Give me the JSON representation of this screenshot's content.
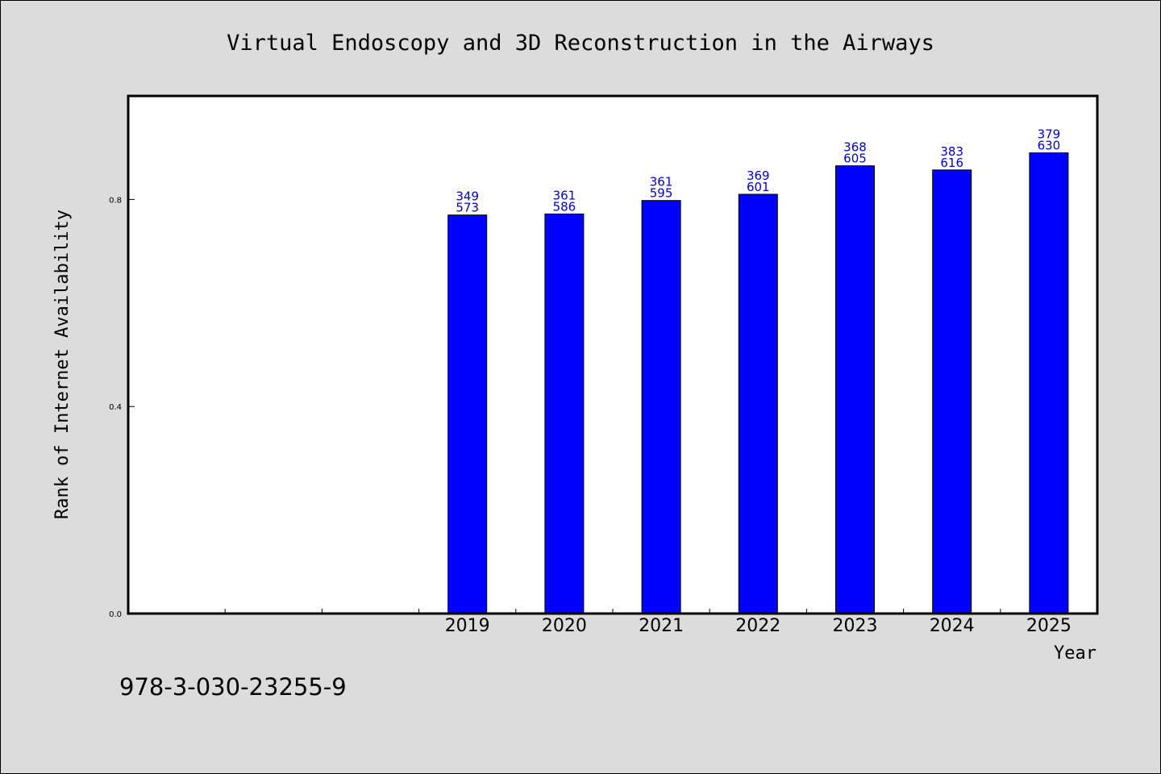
{
  "chart_data": {
    "type": "bar",
    "title": "Virtual Endoscopy and 3D Reconstruction in the Airways",
    "xlabel": "Year",
    "ylabel": "Rank of Internet Availability",
    "categories": [
      "",
      "",
      "",
      "2019",
      "2020",
      "2021",
      "2022",
      "2023",
      "2024",
      "2025"
    ],
    "values": [
      null,
      null,
      null,
      0.77,
      0.772,
      0.798,
      0.81,
      0.865,
      0.857,
      0.89
    ],
    "top_labels": [
      null,
      null,
      null,
      "349",
      "361",
      "361",
      "369",
      "368",
      "383",
      "379"
    ],
    "bottom_labels": [
      null,
      null,
      null,
      "573",
      "586",
      "595",
      "601",
      "605",
      "616",
      "630"
    ],
    "yticks": [
      0.0,
      0.4,
      0.8
    ],
    "ytick_labels": [
      "0.0",
      "0.4",
      "0.8"
    ],
    "ylim": [
      0,
      1.0
    ],
    "grid": false,
    "bar_color": "#0000ff",
    "label_color": "#0000cc"
  },
  "footnote": "978-3-030-23255-9"
}
